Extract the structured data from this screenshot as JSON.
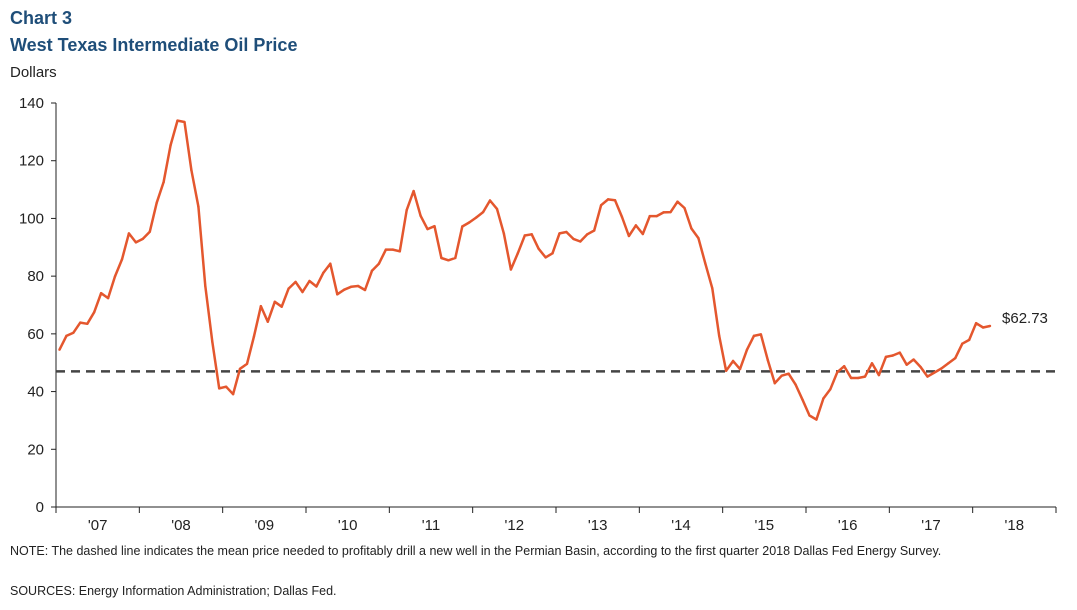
{
  "header": {
    "chart_number": "Chart 3",
    "title": "West Texas Intermediate  Oil Price",
    "ylabel": "Dollars"
  },
  "footer": {
    "note": "NOTE:  The dashed line indicates the mean price needed to profitably drill a new well in the Permian Basin, according to the first quarter 2018 Dallas Fed Energy Survey.",
    "sources": "SOURCES:  Energy Information Administration;  Dallas Fed."
  },
  "colors": {
    "series": "#e4572e",
    "dashed_line": "#444444",
    "axis": "#222222",
    "title": "#1f4e79"
  },
  "chart_data": {
    "type": "line",
    "title": "West Texas Intermediate  Oil Price",
    "ylabel": "Dollars",
    "xlabel": "",
    "ylim": [
      0,
      140
    ],
    "yticks": [
      0,
      20,
      40,
      60,
      80,
      100,
      120,
      140
    ],
    "xlim": [
      "2007-01",
      "2018-03"
    ],
    "year_labels": [
      "'07",
      "'08",
      "'09",
      "'10",
      "'11",
      "'12",
      "'13",
      "'14",
      "'15",
      "'16",
      "'17",
      "'18"
    ],
    "grid": false,
    "reference_line": {
      "value": 47,
      "style": "dashed"
    },
    "end_label": "$62.73",
    "series": [
      {
        "frequency": "monthly",
        "start": "2007-01",
        "values": [
          54.5,
          59.3,
          60.4,
          63.9,
          63.5,
          67.5,
          74.1,
          72.4,
          79.9,
          85.8,
          94.8,
          91.7,
          92.9,
          95.4,
          105.4,
          112.6,
          125.4,
          133.9,
          133.4,
          116.7,
          104.1,
          76.6,
          57.3,
          41.1,
          41.7,
          39.1,
          47.9,
          49.6,
          59.0,
          69.6,
          64.2,
          71.1,
          69.4,
          75.7,
          78.0,
          74.5,
          78.3,
          76.4,
          81.2,
          84.3,
          73.7,
          75.3,
          76.3,
          76.6,
          75.2,
          81.9,
          84.3,
          89.2,
          89.2,
          88.6,
          102.9,
          109.5,
          100.9,
          96.3,
          97.3,
          86.3,
          85.5,
          86.3,
          97.2,
          98.6,
          100.3,
          102.2,
          106.2,
          103.3,
          94.7,
          82.3,
          87.9,
          94.1,
          94.5,
          89.5,
          86.5,
          87.9,
          94.8,
          95.3,
          92.9,
          92.0,
          94.5,
          95.8,
          104.6,
          106.6,
          106.3,
          100.5,
          93.9,
          97.6,
          94.6,
          100.8,
          100.8,
          102.1,
          102.2,
          105.8,
          103.6,
          96.5,
          93.2,
          84.4,
          75.8,
          59.3,
          47.2,
          50.6,
          47.8,
          54.5,
          59.3,
          59.8,
          50.9,
          42.9,
          45.5,
          46.2,
          42.4,
          37.2,
          31.7,
          30.3,
          37.6,
          40.8,
          46.7,
          48.8,
          44.7,
          44.7,
          45.2,
          49.8,
          45.7,
          52.0,
          52.5,
          53.5,
          49.3,
          51.1,
          48.5,
          45.2,
          46.6,
          48.0,
          49.8,
          51.6,
          56.6,
          57.9,
          63.7,
          62.2,
          62.73
        ]
      }
    ]
  }
}
